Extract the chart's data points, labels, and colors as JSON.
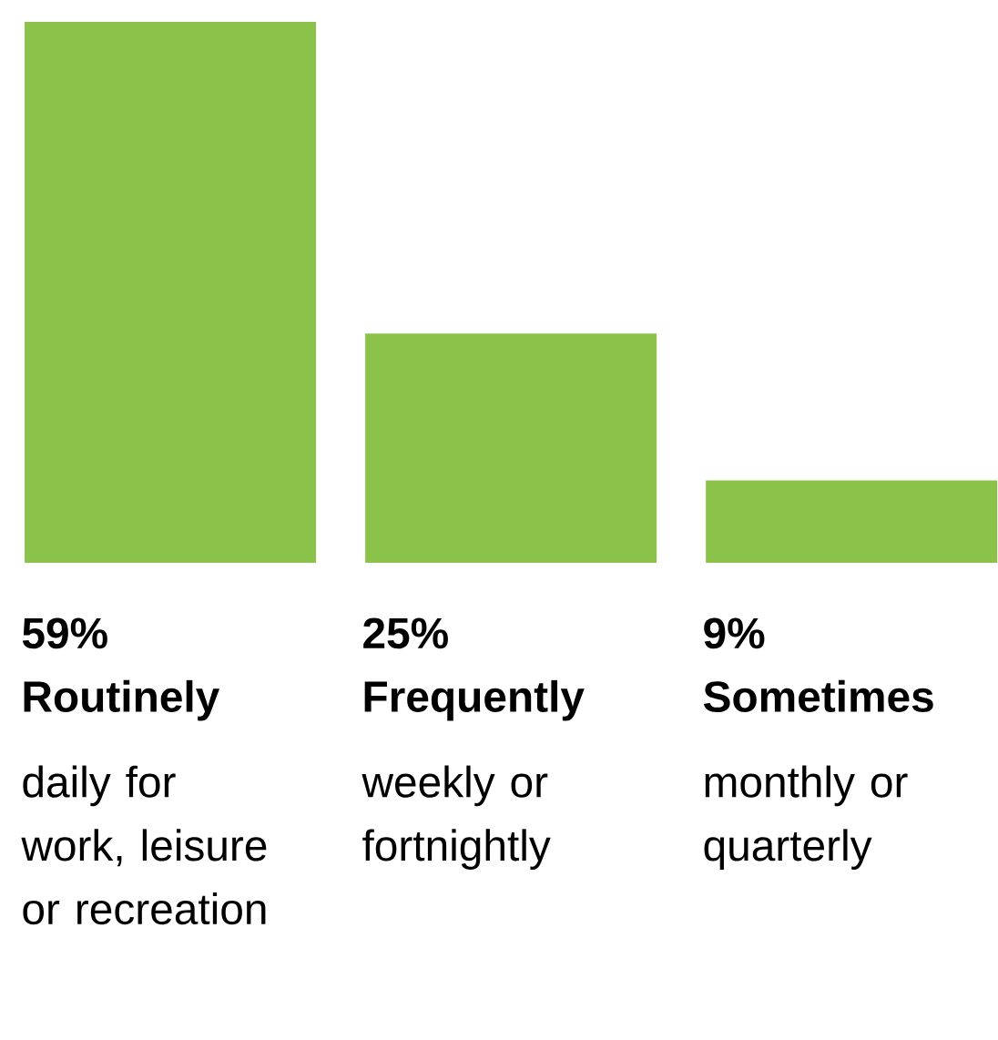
{
  "chart_data": {
    "type": "bar",
    "categories": [
      "Routinely",
      "Frequently",
      "Sometimes"
    ],
    "values": [
      59,
      25,
      9
    ],
    "color": "#8bc34a",
    "value_labels": [
      "59%",
      "25%",
      "9%"
    ],
    "annotations": [
      "daily for work, leisure or recreation",
      "weekly or fortnightly",
      "monthly or quarterly"
    ]
  }
}
